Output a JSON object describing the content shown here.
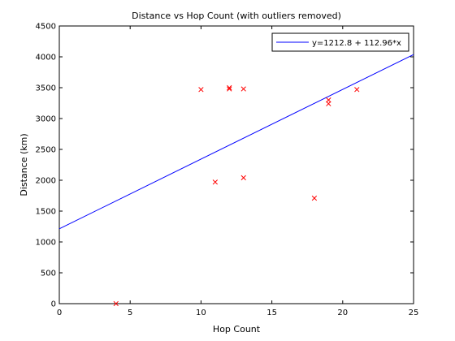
{
  "chart_data": {
    "type": "scatter",
    "title": "Distance vs Hop Count (with outliers removed)",
    "xlabel": "Hop Count",
    "ylabel": "Distance (km)",
    "xlim": [
      0,
      25
    ],
    "ylim": [
      0,
      4500
    ],
    "xticks": [
      0,
      5,
      10,
      15,
      20,
      25
    ],
    "yticks": [
      0,
      500,
      1000,
      1500,
      2000,
      2500,
      3000,
      3500,
      4000,
      4500
    ],
    "grid": false,
    "legend_position": "top-right",
    "series": [
      {
        "kind": "points",
        "marker": "x",
        "color": "#ff0000",
        "x": [
          4,
          10,
          11,
          12,
          12,
          13,
          13,
          18,
          19,
          19,
          21
        ],
        "y": [
          0,
          3470,
          1970,
          3480,
          3500,
          3480,
          2040,
          1710,
          3240,
          3300,
          3470
        ]
      },
      {
        "kind": "line",
        "name": "y=1212.8 + 112.96*x",
        "color": "#0000ff",
        "intercept": 1212.8,
        "slope": 112.96
      }
    ]
  }
}
